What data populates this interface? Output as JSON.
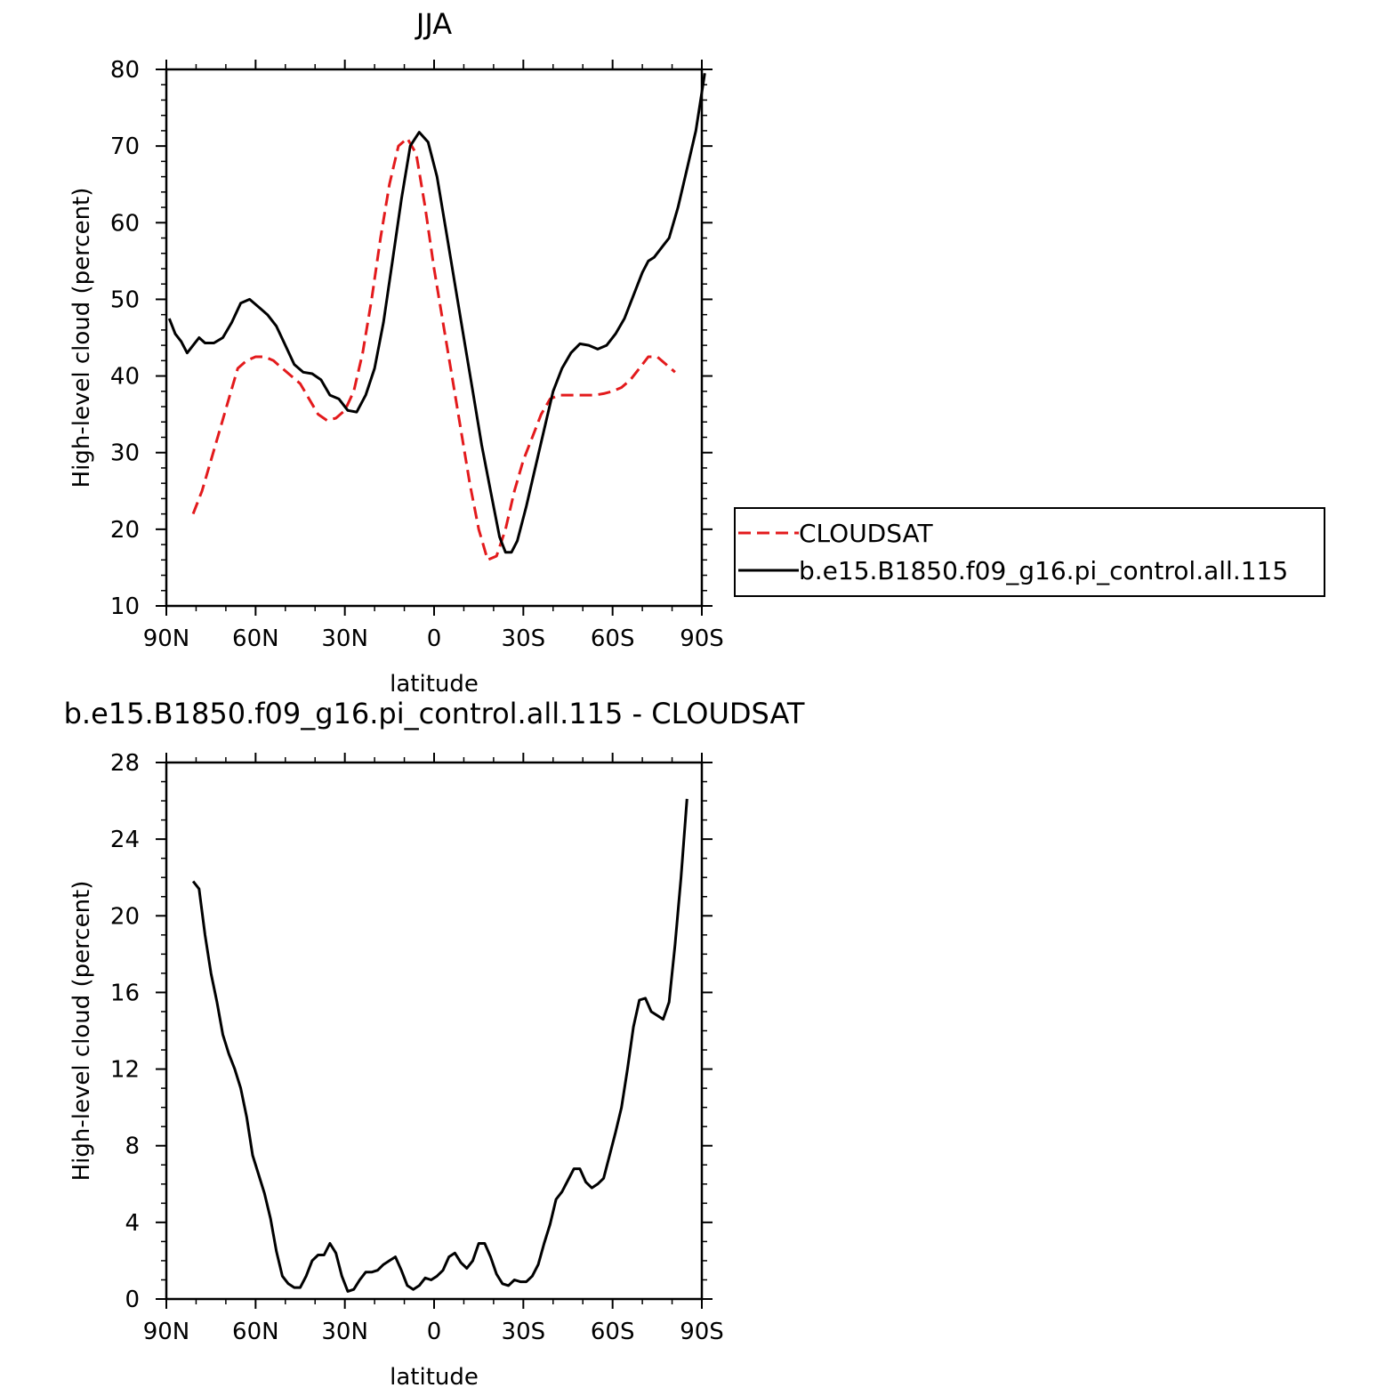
{
  "chart_data": [
    {
      "type": "line",
      "title": "JJA",
      "xlabel": "latitude",
      "ylabel": "High-level cloud (percent)",
      "xlim": [
        -90,
        90
      ],
      "ylim": [
        10,
        80
      ],
      "x_tick_values": [
        -90,
        -60,
        -30,
        0,
        30,
        60,
        90
      ],
      "x_tick_labels": [
        "90N",
        "60N",
        "30N",
        "0",
        "30S",
        "60S",
        "90S"
      ],
      "y_ticks": [
        10,
        20,
        30,
        40,
        50,
        60,
        70,
        80
      ],
      "grid": false,
      "legend_position": "right",
      "series": [
        {
          "name": "CLOUDSAT",
          "color": "#e31a1c",
          "dash": "dashed",
          "points": [
            [
              -81,
              22
            ],
            [
              -78,
              25
            ],
            [
              -75,
              29
            ],
            [
              -72,
              33
            ],
            [
              -69,
              37
            ],
            [
              -66,
              41
            ],
            [
              -63,
              42
            ],
            [
              -60,
              42.5
            ],
            [
              -57,
              42.5
            ],
            [
              -54,
              42
            ],
            [
              -51,
              41
            ],
            [
              -48,
              40
            ],
            [
              -45,
              39
            ],
            [
              -42,
              37
            ],
            [
              -39,
              35
            ],
            [
              -36,
              34.2
            ],
            [
              -33,
              34.5
            ],
            [
              -30,
              35.5
            ],
            [
              -27,
              38
            ],
            [
              -24,
              43
            ],
            [
              -21,
              50
            ],
            [
              -18,
              58
            ],
            [
              -15,
              65
            ],
            [
              -12,
              70
            ],
            [
              -9,
              71
            ],
            [
              -6,
              69
            ],
            [
              -3,
              62
            ],
            [
              0,
              54
            ],
            [
              3,
              47
            ],
            [
              6,
              40
            ],
            [
              9,
              33
            ],
            [
              12,
              26
            ],
            [
              15,
              20
            ],
            [
              18,
              16
            ],
            [
              21,
              16.5
            ],
            [
              24,
              20
            ],
            [
              27,
              25
            ],
            [
              30,
              29
            ],
            [
              33,
              32
            ],
            [
              36,
              35
            ],
            [
              39,
              37
            ],
            [
              42,
              37.5
            ],
            [
              45,
              37.5
            ],
            [
              48,
              37.5
            ],
            [
              51,
              37.5
            ],
            [
              54,
              37.5
            ],
            [
              57,
              37.7
            ],
            [
              60,
              38
            ],
            [
              63,
              38.5
            ],
            [
              66,
              39.5
            ],
            [
              69,
              41
            ],
            [
              72,
              42.5
            ],
            [
              75,
              42.5
            ],
            [
              78,
              41.5
            ],
            [
              81,
              40.5
            ]
          ]
        },
        {
          "name": "b.e15.B1850.f09_g16.pi_control.all.115",
          "color": "#000000",
          "dash": "solid",
          "points": [
            [
              -89,
              47.5
            ],
            [
              -87,
              45.5
            ],
            [
              -85,
              44.5
            ],
            [
              -83,
              43
            ],
            [
              -81,
              44
            ],
            [
              -79,
              45
            ],
            [
              -77,
              44.3
            ],
            [
              -74,
              44.3
            ],
            [
              -71,
              45
            ],
            [
              -68,
              47
            ],
            [
              -65,
              49.5
            ],
            [
              -62,
              50
            ],
            [
              -59,
              49
            ],
            [
              -56,
              48
            ],
            [
              -53,
              46.5
            ],
            [
              -50,
              44
            ],
            [
              -47,
              41.5
            ],
            [
              -44,
              40.5
            ],
            [
              -41,
              40.3
            ],
            [
              -38,
              39.5
            ],
            [
              -35,
              37.5
            ],
            [
              -32,
              37
            ],
            [
              -29,
              35.5
            ],
            [
              -26,
              35.3
            ],
            [
              -23,
              37.5
            ],
            [
              -20,
              41
            ],
            [
              -17,
              47
            ],
            [
              -14,
              55
            ],
            [
              -11,
              63
            ],
            [
              -8,
              70
            ],
            [
              -5,
              71.8
            ],
            [
              -2,
              70.5
            ],
            [
              1,
              66
            ],
            [
              4,
              59
            ],
            [
              7,
              52
            ],
            [
              10,
              45
            ],
            [
              13,
              38
            ],
            [
              16,
              31
            ],
            [
              19,
              25
            ],
            [
              22,
              19
            ],
            [
              24,
              17
            ],
            [
              26,
              17
            ],
            [
              28,
              18.5
            ],
            [
              31,
              23
            ],
            [
              34,
              28
            ],
            [
              37,
              33
            ],
            [
              40,
              38
            ],
            [
              43,
              41
            ],
            [
              46,
              43
            ],
            [
              49,
              44.2
            ],
            [
              52,
              44
            ],
            [
              55,
              43.5
            ],
            [
              58,
              44
            ],
            [
              61,
              45.5
            ],
            [
              64,
              47.5
            ],
            [
              67,
              50.5
            ],
            [
              70,
              53.5
            ],
            [
              72,
              55
            ],
            [
              74,
              55.5
            ],
            [
              77,
              57
            ],
            [
              79,
              58
            ],
            [
              82,
              62
            ],
            [
              85,
              67
            ],
            [
              88,
              72
            ],
            [
              91,
              79.5
            ]
          ]
        }
      ]
    },
    {
      "type": "line",
      "title": "b.e15.B1850.f09_g16.pi_control.all.115 - CLOUDSAT",
      "xlabel": "latitude",
      "ylabel": "High-level cloud (percent)",
      "xlim": [
        -90,
        90
      ],
      "ylim": [
        0,
        28
      ],
      "x_tick_values": [
        -90,
        -60,
        -30,
        0,
        30,
        60,
        90
      ],
      "x_tick_labels": [
        "90N",
        "60N",
        "30N",
        "0",
        "30S",
        "60S",
        "90S"
      ],
      "y_ticks": [
        0,
        4,
        8,
        12,
        16,
        20,
        24,
        28
      ],
      "grid": false,
      "series": [
        {
          "color": "#000000",
          "dash": "solid",
          "points": [
            [
              -81,
              21.8
            ],
            [
              -79,
              21.4
            ],
            [
              -77,
              19
            ],
            [
              -75,
              17
            ],
            [
              -73,
              15.5
            ],
            [
              -71,
              13.8
            ],
            [
              -69,
              12.8
            ],
            [
              -67,
              12
            ],
            [
              -65,
              11
            ],
            [
              -63,
              9.5
            ],
            [
              -61,
              7.5
            ],
            [
              -59,
              6.5
            ],
            [
              -57,
              5.5
            ],
            [
              -55,
              4.2
            ],
            [
              -53,
              2.5
            ],
            [
              -51,
              1.2
            ],
            [
              -49,
              0.8
            ],
            [
              -47,
              0.6
            ],
            [
              -45,
              0.6
            ],
            [
              -43,
              1.2
            ],
            [
              -41,
              2
            ],
            [
              -39,
              2.3
            ],
            [
              -37,
              2.3
            ],
            [
              -35,
              2.9
            ],
            [
              -33,
              2.4
            ],
            [
              -31,
              1.2
            ],
            [
              -29,
              0.4
            ],
            [
              -27,
              0.5
            ],
            [
              -25,
              1
            ],
            [
              -23,
              1.4
            ],
            [
              -21,
              1.4
            ],
            [
              -19,
              1.5
            ],
            [
              -17,
              1.8
            ],
            [
              -15,
              2
            ],
            [
              -13,
              2.2
            ],
            [
              -11,
              1.5
            ],
            [
              -9,
              0.7
            ],
            [
              -7,
              0.5
            ],
            [
              -5,
              0.7
            ],
            [
              -3,
              1.1
            ],
            [
              -1,
              1
            ],
            [
              1,
              1.2
            ],
            [
              3,
              1.5
            ],
            [
              5,
              2.2
            ],
            [
              7,
              2.4
            ],
            [
              9,
              1.9
            ],
            [
              11,
              1.6
            ],
            [
              13,
              2
            ],
            [
              15,
              2.9
            ],
            [
              17,
              2.9
            ],
            [
              19,
              2.2
            ],
            [
              21,
              1.3
            ],
            [
              23,
              0.8
            ],
            [
              25,
              0.7
            ],
            [
              27,
              1
            ],
            [
              29,
              0.9
            ],
            [
              31,
              0.9
            ],
            [
              33,
              1.2
            ],
            [
              35,
              1.8
            ],
            [
              37,
              2.9
            ],
            [
              39,
              3.9
            ],
            [
              41,
              5.2
            ],
            [
              43,
              5.6
            ],
            [
              45,
              6.2
            ],
            [
              47,
              6.8
            ],
            [
              49,
              6.8
            ],
            [
              51,
              6.1
            ],
            [
              53,
              5.8
            ],
            [
              55,
              6
            ],
            [
              57,
              6.3
            ],
            [
              59,
              7.5
            ],
            [
              61,
              8.7
            ],
            [
              63,
              10
            ],
            [
              65,
              12
            ],
            [
              67,
              14.2
            ],
            [
              69,
              15.6
            ],
            [
              71,
              15.7
            ],
            [
              73,
              15
            ],
            [
              75,
              14.8
            ],
            [
              77,
              14.6
            ],
            [
              79,
              15.5
            ],
            [
              81,
              18.5
            ],
            [
              83,
              22
            ],
            [
              85,
              26.1
            ]
          ]
        }
      ]
    }
  ]
}
